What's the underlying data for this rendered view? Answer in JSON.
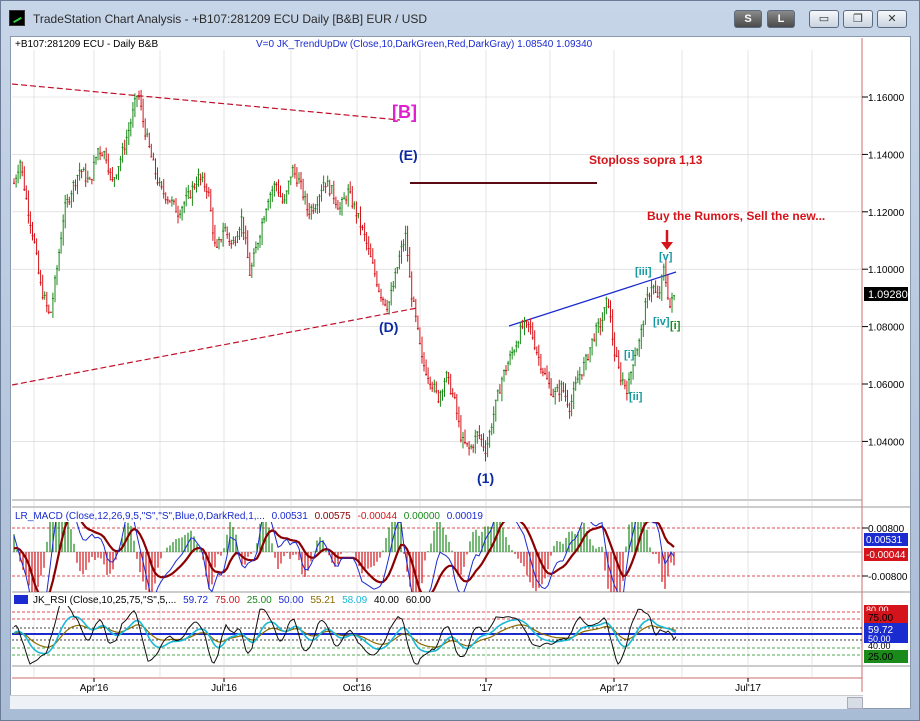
{
  "window": {
    "title": "TradeStation Chart Analysis  -  +B107:281209 ECU Daily [B&B] EUR / USD",
    "buttons": {
      "s": "S",
      "l": "L",
      "min": "▭",
      "max": "❐",
      "close": "✕"
    }
  },
  "chart_data": [
    {
      "type": "line",
      "panel": "price",
      "header": "+B107:281209 ECU - Daily  B&B",
      "indicator_label": "V=0  JK_TrendUpDw  (Close,10,DarkGreen,Red,DarkGray)   1.08540  1.09340",
      "yticks": [
        "1.16000",
        "1.14000",
        "1.12000",
        "1.10000",
        "1.08000",
        "1.06000",
        "1.04000"
      ],
      "last_price": "1.09280",
      "xticks": [
        "Apr'16",
        "Jul'16",
        "Oct'16",
        "'17",
        "Apr'17",
        "Jul'17"
      ],
      "annotations": {
        "wave_b": "[B]",
        "wave_e": "(E)",
        "wave_d": "(D)",
        "wave_1": "(1)",
        "stoploss": "Stoploss sopra 1,13",
        "rumors": "Buy the Rumors, Sell the new...",
        "w_iii": "[iii]",
        "w_v": "[v]",
        "w_iv": "[iv]",
        "w_i_green": "[i]",
        "w_i": "[i]",
        "w_ii": "[ii]"
      },
      "ylim": [
        1.02,
        1.18
      ]
    },
    {
      "type": "line",
      "panel": "macd",
      "label_parts": [
        "LR_MACD (Close,12,26,9,5,\"S\",\"S\",Blue,0,DarkRed,1,...",
        "0.00531",
        "0.00575",
        "-0.00044",
        "0.00000",
        "0.00019"
      ],
      "yticks": [
        "0.00800",
        "-0.00800"
      ],
      "value_macd": "0.00531",
      "value_hist": "-0.00044"
    },
    {
      "type": "line",
      "panel": "rsi",
      "label_parts": [
        "JK_RSI (Close,10,25,75,\"S\",5,...",
        "59.72",
        "75.00",
        "25.00",
        "50.00",
        "55.21",
        "58.09",
        "40.00",
        "60.00"
      ],
      "value_top": "80.00",
      "value_75": "75.00",
      "value_rsi": "59.72",
      "value_50": "50.00",
      "value_40": "40.00",
      "value_25": "25.00"
    }
  ]
}
